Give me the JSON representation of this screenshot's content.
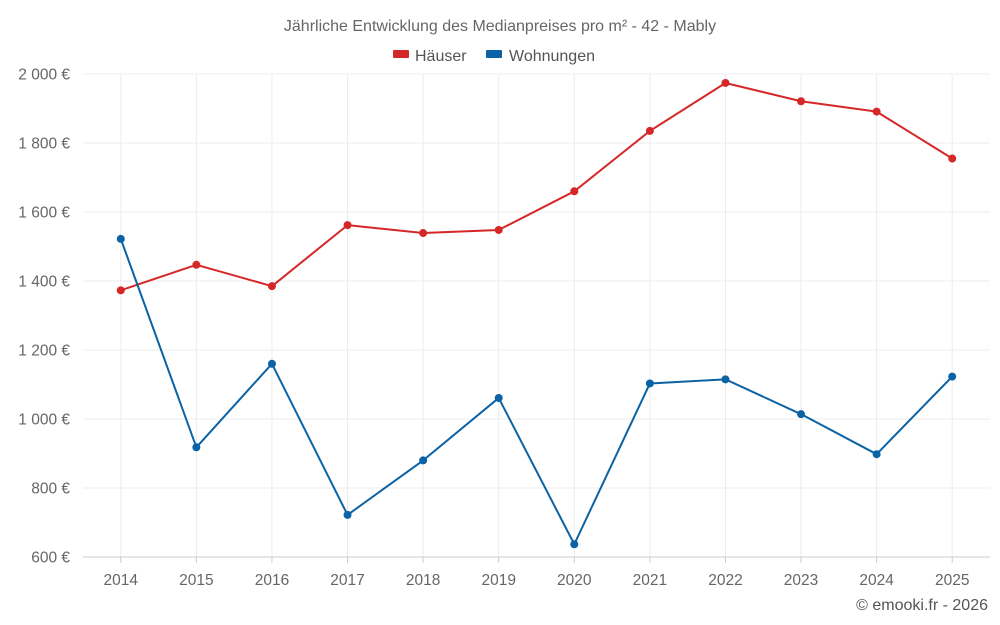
{
  "chart_data": {
    "type": "line",
    "title": "Jährliche Entwicklung des Medianpreises pro m² - 42 - Mably",
    "categories": [
      "2014",
      "2015",
      "2016",
      "2017",
      "2018",
      "2019",
      "2020",
      "2021",
      "2022",
      "2023",
      "2024",
      "2025"
    ],
    "series": [
      {
        "name": "Häuser",
        "color": "#d62728",
        "values": [
          1373,
          1447,
          1385,
          1562,
          1539,
          1548,
          1660,
          1835,
          1974,
          1921,
          1891,
          1755
        ]
      },
      {
        "name": "Wohnungen",
        "color": "#0b62a4",
        "values": [
          1522,
          918,
          1160,
          722,
          880,
          1061,
          637,
          1103,
          1115,
          1014,
          898,
          1123
        ]
      }
    ],
    "ylim": [
      600,
      2000
    ],
    "yticks": [
      600,
      800,
      1000,
      1200,
      1400,
      1600,
      1800,
      2000
    ],
    "ytick_labels": [
      "600 €",
      "800 €",
      "1 000 €",
      "1 200 €",
      "1 400 €",
      "1 600 €",
      "1 800 €",
      "2 000 €"
    ],
    "xlabel": "",
    "ylabel": "",
    "grid": true,
    "legend_position": "top-center"
  },
  "credit": "© emooki.fr - 2026"
}
